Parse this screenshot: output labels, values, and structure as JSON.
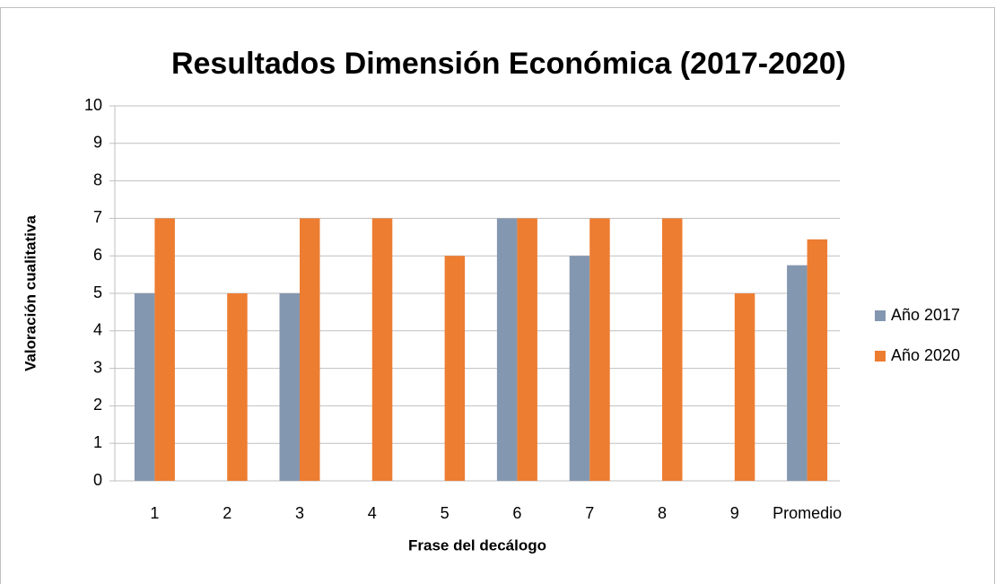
{
  "chart_data": {
    "type": "bar",
    "title": "Resultados Dimensión Económica (2017-2020)",
    "x_label": "Frase del decálogo",
    "y_label": "Valoración cualitativa",
    "categories": [
      "1",
      "2",
      "3",
      "4",
      "5",
      "6",
      "7",
      "8",
      "9",
      "Promedio"
    ],
    "series": [
      {
        "name": "Año 2017",
        "color": "#8497b0",
        "values": [
          5,
          null,
          5,
          null,
          null,
          7,
          6,
          null,
          null,
          5.75
        ]
      },
      {
        "name": "Año 2020",
        "color": "#ed7d31",
        "values": [
          7,
          5,
          7,
          7,
          6,
          7,
          7,
          7,
          5,
          6.44
        ]
      }
    ],
    "ylim": [
      0,
      10
    ],
    "yticks": [
      0,
      1,
      2,
      3,
      4,
      5,
      6,
      7,
      8,
      9,
      10
    ],
    "grid": true,
    "legend": "right"
  }
}
